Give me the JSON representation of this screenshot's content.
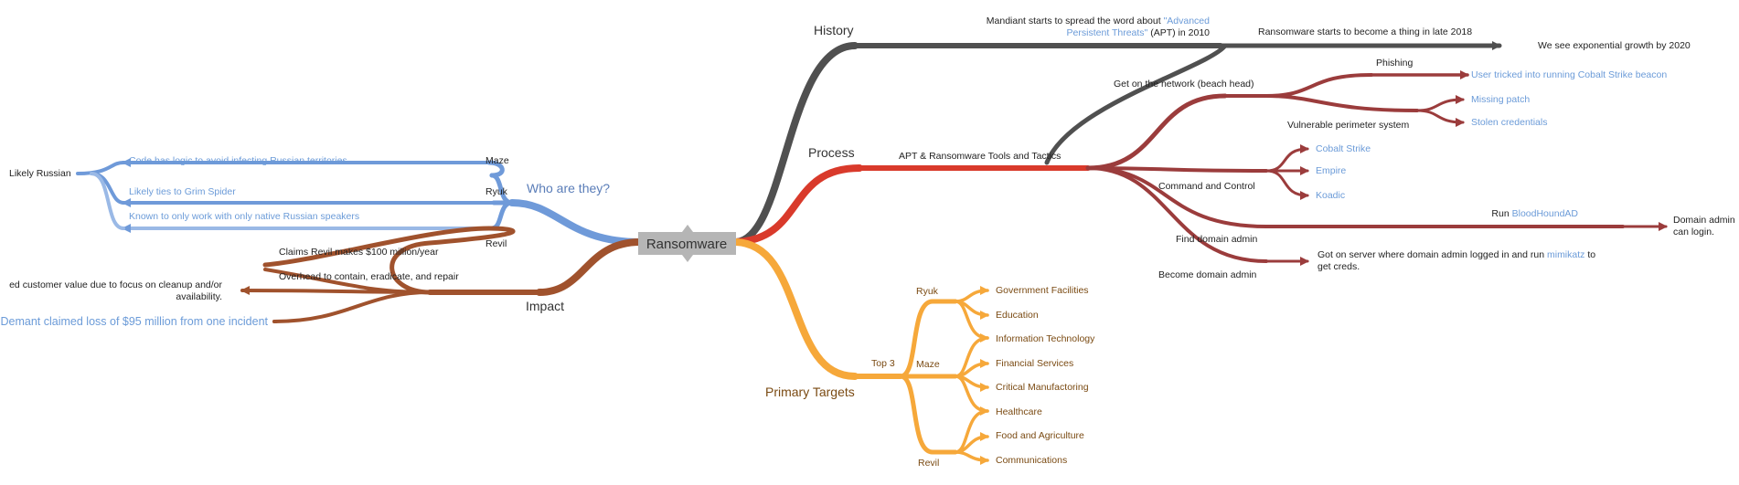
{
  "root": "Ransomware",
  "branches": {
    "history": {
      "label": "History",
      "mandiant_pre": "Mandiant starts to spread the word about ",
      "mandiant_link1": "\"Advanced",
      "mandiant_link2": "Persistent Threats\"",
      "mandiant_post": " (APT) in 2010",
      "late2018": "Ransomware starts to become a thing in late 2018",
      "growth": "We see exponential growth by 2020"
    },
    "process": {
      "label": "Process",
      "tools": "APT & Ransomware Tools and Tactics",
      "network": "Get on the network (beach head)",
      "phishing": "Phishing",
      "phishing_leaf": "User tricked into running Cobalt Strike beacon",
      "vuln": "Vulnerable perimeter system",
      "missing_patch": "Missing patch",
      "stolen_creds": "Stolen credentials",
      "c2": "Command and Control",
      "cobalt": "Cobalt Strike",
      "empire": "Empire",
      "koadic": "Koadic",
      "find_admin": "Find domain admin",
      "run": "Run ",
      "bloodhound": "BloodHoundAD",
      "domain_login1": "Domain admin",
      "domain_login2": "can login.",
      "become_admin": "Become domain admin",
      "server_pre": "Got on server where domain admin logged in and run ",
      "mimikatz": "mimikatz",
      "server_post": " to",
      "server_line2": "get creds."
    },
    "who": {
      "label": "Who are they?",
      "likely_russian": "Likely Russian",
      "maze": "Maze",
      "ryuk": "Ryuk",
      "revil": "Revil",
      "code_logic": "Code has logic to avoid infecting Russian territories",
      "grim_spider": "Likely ties to Grim Spider",
      "native_speakers": "Known to only work with only native Russian speakers"
    },
    "impact": {
      "label": "Impact",
      "revil_claim": "Claims Revil makes $100 million/year",
      "overhead": "Overhead to contain, eradicate, and repair",
      "customer_value1": "ed customer value due to focus on cleanup and/or",
      "customer_value2": "availability.",
      "demant": "Demant claimed loss of $95 million from one incident"
    },
    "targets": {
      "label": "Primary Targets",
      "top3": "Top 3",
      "ryuk": "Ryuk",
      "maze": "Maze",
      "revil": "Revil",
      "items": [
        "Government Facilities",
        "Education",
        "Information Technology",
        "Financial Services",
        "Critical Manufactoring",
        "Healthcare",
        "Food and Agriculture",
        "Communications"
      ]
    }
  },
  "colors": {
    "history": "#505050",
    "process": "#d93a2b",
    "process_sub": "#9b3c3c",
    "who": "#6f9ad9",
    "who_light": "#9ab9e6",
    "impact": "#a0522d",
    "targets": "#f6a83a",
    "root_box": "#b5b5b5",
    "link": "#6b9bd8"
  }
}
